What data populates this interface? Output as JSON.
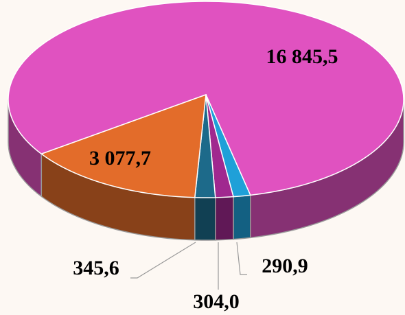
{
  "chart_data": {
    "type": "pie3d",
    "categories": [
      null,
      null,
      null,
      null,
      null
    ],
    "values": [
      16845.5,
      290.9,
      304.0,
      345.6,
      3077.7
    ],
    "value_labels": [
      "16 845,5",
      "290,9",
      "304,0",
      "345,6",
      "3 077,7"
    ],
    "colors": [
      "#e052c0",
      "#1fa0d8",
      "#a0288f",
      "#1d6a8a",
      "#e36c2a"
    ]
  }
}
